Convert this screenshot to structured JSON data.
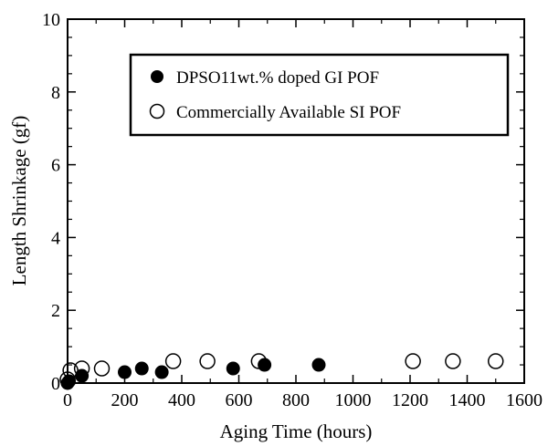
{
  "chart_data": {
    "type": "scatter",
    "title": "",
    "xlabel": "Aging Time (hours)",
    "ylabel": "Length Shrinkage (gf)",
    "xlim": [
      0,
      1600
    ],
    "ylim": [
      0,
      10
    ],
    "x_ticks": [
      "0",
      "200",
      "400",
      "600",
      "800",
      "1000",
      "1200",
      "1400",
      "1600"
    ],
    "y_ticks": [
      "0",
      "2",
      "4",
      "6",
      "8",
      "10"
    ],
    "grid": false,
    "legend_position": "top-right",
    "series": [
      {
        "name": "DPSO11wt.% doped GI POF",
        "marker": "filled-circle",
        "color": "#000000",
        "points": [
          {
            "x": 0,
            "y": 0.0
          },
          {
            "x": 5,
            "y": 0.05
          },
          {
            "x": 50,
            "y": 0.2
          },
          {
            "x": 200,
            "y": 0.3
          },
          {
            "x": 260,
            "y": 0.4
          },
          {
            "x": 330,
            "y": 0.3
          },
          {
            "x": 580,
            "y": 0.4
          },
          {
            "x": 690,
            "y": 0.5
          },
          {
            "x": 880,
            "y": 0.5
          }
        ]
      },
      {
        "name": "Commercially Available SI POF",
        "marker": "open-circle",
        "color": "#000000",
        "points": [
          {
            "x": 0,
            "y": 0.1
          },
          {
            "x": 10,
            "y": 0.35
          },
          {
            "x": 50,
            "y": 0.4
          },
          {
            "x": 120,
            "y": 0.4
          },
          {
            "x": 370,
            "y": 0.6
          },
          {
            "x": 490,
            "y": 0.6
          },
          {
            "x": 670,
            "y": 0.6
          },
          {
            "x": 1210,
            "y": 0.6
          },
          {
            "x": 1350,
            "y": 0.6
          },
          {
            "x": 1500,
            "y": 0.6
          }
        ]
      }
    ]
  }
}
